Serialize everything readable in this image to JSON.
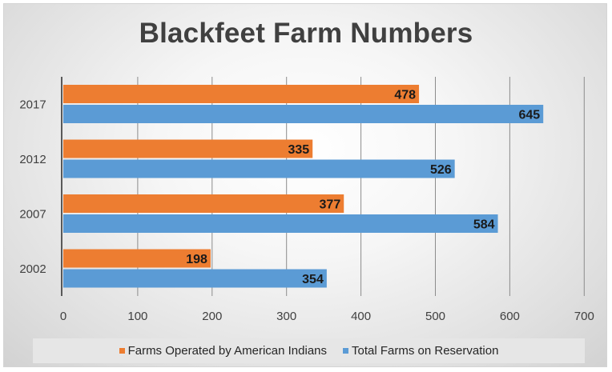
{
  "chart_data": {
    "type": "bar",
    "orientation": "horizontal",
    "title": "Blackfeet Farm Numbers",
    "categories": [
      "2017",
      "2012",
      "2007",
      "2002"
    ],
    "series": [
      {
        "name": "Farms Operated by American Indians",
        "color": "#ed7d31",
        "values": [
          478,
          335,
          377,
          198
        ]
      },
      {
        "name": "Total Farms on Reservation",
        "color": "#5b9bd5",
        "values": [
          645,
          526,
          584,
          354
        ]
      }
    ],
    "xlim": [
      0,
      700
    ],
    "x_ticks": [
      "0",
      "100",
      "200",
      "300",
      "400",
      "500",
      "600",
      "700"
    ],
    "grid": true,
    "data_labels": true,
    "legend_position": "bottom"
  }
}
